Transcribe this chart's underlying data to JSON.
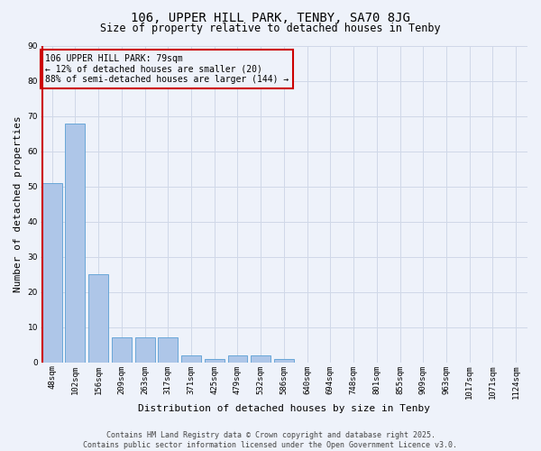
{
  "title": "106, UPPER HILL PARK, TENBY, SA70 8JG",
  "subtitle": "Size of property relative to detached houses in Tenby",
  "xlabel": "Distribution of detached houses by size in Tenby",
  "ylabel": "Number of detached properties",
  "categories": [
    "48sqm",
    "102sqm",
    "156sqm",
    "209sqm",
    "263sqm",
    "317sqm",
    "371sqm",
    "425sqm",
    "479sqm",
    "532sqm",
    "586sqm",
    "640sqm",
    "694sqm",
    "748sqm",
    "801sqm",
    "855sqm",
    "909sqm",
    "963sqm",
    "1017sqm",
    "1071sqm",
    "1124sqm"
  ],
  "values": [
    51,
    68,
    25,
    7,
    7,
    7,
    2,
    1,
    2,
    2,
    1,
    0,
    0,
    0,
    0,
    0,
    0,
    0,
    0,
    0,
    0
  ],
  "bar_color": "#aec6e8",
  "bar_edge_color": "#5a9fd4",
  "grid_color": "#d0d8e8",
  "bg_color": "#eef2fa",
  "marker_line_color": "#cc0000",
  "ylim": [
    0,
    90
  ],
  "yticks": [
    0,
    10,
    20,
    30,
    40,
    50,
    60,
    70,
    80,
    90
  ],
  "annotation_title": "106 UPPER HILL PARK: 79sqm",
  "annotation_line1": "← 12% of detached houses are smaller (20)",
  "annotation_line2": "88% of semi-detached houses are larger (144) →",
  "annotation_box_color": "#cc0000",
  "footer_line1": "Contains HM Land Registry data © Crown copyright and database right 2025.",
  "footer_line2": "Contains public sector information licensed under the Open Government Licence v3.0.",
  "title_fontsize": 10,
  "subtitle_fontsize": 8.5,
  "xlabel_fontsize": 8,
  "ylabel_fontsize": 8,
  "tick_fontsize": 6.5,
  "annot_fontsize": 7,
  "footer_fontsize": 6
}
